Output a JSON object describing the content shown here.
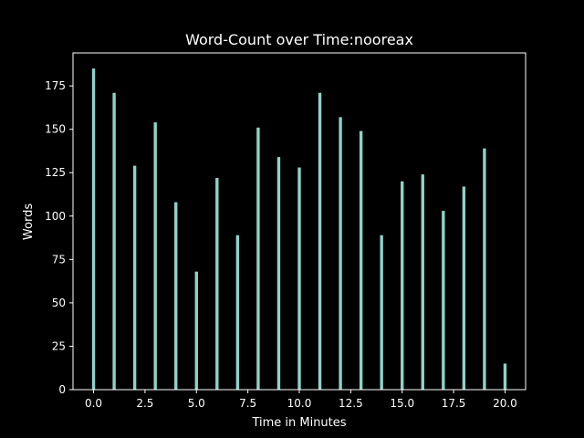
{
  "chart_data": {
    "type": "bar",
    "title": "Word-Count over Time:nooreax",
    "xlabel": "Time in Minutes",
    "ylabel": "Words",
    "x": [
      0,
      1,
      2,
      3,
      4,
      5,
      6,
      7,
      8,
      9,
      10,
      11,
      12,
      13,
      14,
      15,
      16,
      17,
      18,
      19,
      20
    ],
    "values": [
      185,
      171,
      129,
      154,
      108,
      68,
      122,
      89,
      151,
      134,
      128,
      171,
      157,
      149,
      89,
      120,
      124,
      103,
      117,
      139,
      15
    ],
    "xlim": [
      -1,
      21
    ],
    "ylim": [
      0,
      194
    ],
    "xticks": [
      0,
      2.5,
      5,
      7.5,
      10,
      12.5,
      15,
      17.5,
      20
    ],
    "xtick_labels": [
      "0.0",
      "2.5",
      "5.0",
      "7.5",
      "10.0",
      "12.5",
      "15.0",
      "17.5",
      "20.0"
    ],
    "yticks": [
      0,
      25,
      50,
      75,
      100,
      125,
      150,
      175
    ],
    "ytick_labels": [
      "0",
      "25",
      "50",
      "75",
      "100",
      "125",
      "150",
      "175"
    ],
    "grid": false,
    "colors": {
      "background": "#000000",
      "bar": "#8dd3c7",
      "axis": "#ffffff",
      "text": "#ffffff"
    }
  }
}
